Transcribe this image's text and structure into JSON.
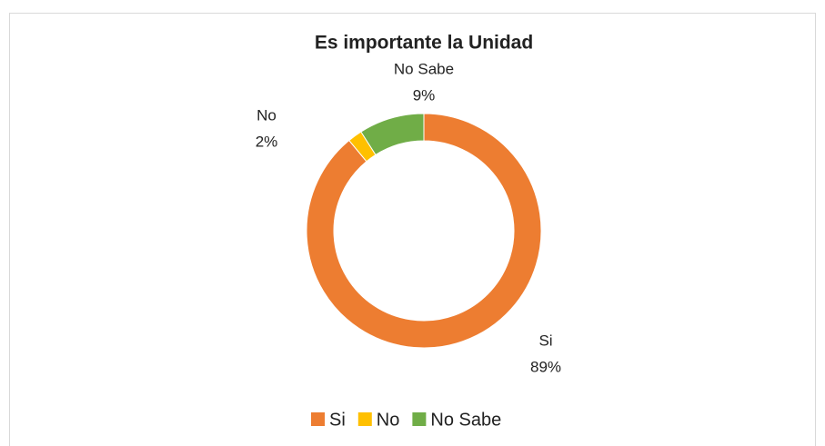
{
  "chart_data": {
    "type": "donut",
    "title": "Es importante la Unidad",
    "categories": [
      "Si",
      "No",
      "No Sabe"
    ],
    "values": [
      89,
      2,
      9
    ],
    "value_labels": [
      "89%",
      "2%",
      "9%"
    ],
    "colors": [
      "#ed7d31",
      "#ffc000",
      "#70ad47"
    ],
    "legend": "bottom"
  }
}
